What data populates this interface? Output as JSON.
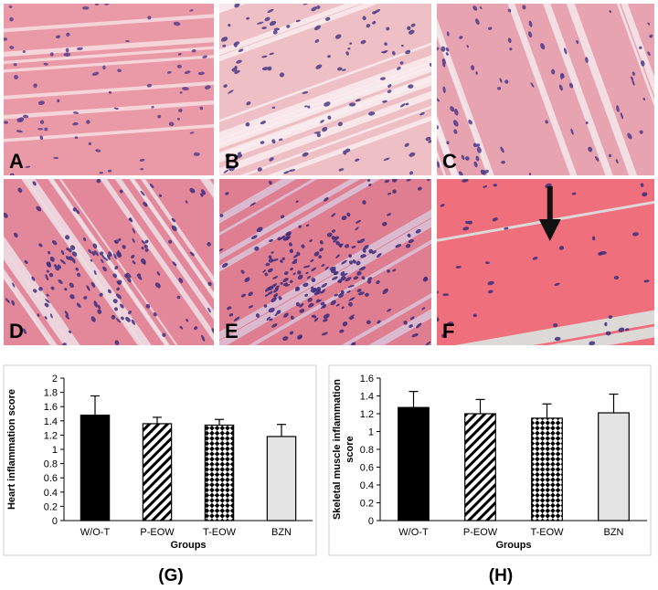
{
  "micrographs": [
    {
      "label": "A",
      "icon": "histology-micrograph-icon",
      "base": "#e99aa6",
      "streak": "#f7dfe3",
      "nuclei": "#5a3d8c"
    },
    {
      "label": "B",
      "icon": "histology-micrograph-icon",
      "base": "#eec0c6",
      "streak": "#f9ecee",
      "nuclei": "#4a3a86"
    },
    {
      "label": "C",
      "icon": "histology-micrograph-icon",
      "base": "#e7a4b0",
      "streak": "#f3e9ec",
      "nuclei": "#4c3a88"
    },
    {
      "label": "D",
      "icon": "histology-micrograph-icon",
      "base": "#e3889a",
      "streak": "#efe0e6",
      "nuclei": "#3f2f7e"
    },
    {
      "label": "E",
      "icon": "histology-micrograph-icon",
      "base": "#e07e91",
      "streak": "#d9c4da",
      "nuclei": "#3b2c7a"
    },
    {
      "label": "F",
      "icon": "histology-micrograph-icon",
      "base": "#ef6f7d",
      "streak": "#d8ece6",
      "nuclei": "#3d2f7d"
    }
  ],
  "chart_data": [
    {
      "type": "bar",
      "caption": "(G)",
      "categories": [
        "W/O-T",
        "P-EOW",
        "T-EOW",
        "BZN"
      ],
      "values": [
        1.48,
        1.36,
        1.34,
        1.18
      ],
      "errors": [
        0.27,
        0.09,
        0.08,
        0.17
      ],
      "patterns": [
        "solid-black",
        "diagonal-hatch",
        "checker",
        "light-gray"
      ],
      "xlabel": "Groups",
      "ylabel": "Heart inflammation score",
      "ylim": [
        0,
        2
      ],
      "yticks": [
        "0",
        "0.2",
        "0.4",
        "0.6",
        "0.8",
        "1",
        "1.2",
        "1.4",
        "1.6",
        "1.8",
        "2"
      ],
      "grid": false
    },
    {
      "type": "bar",
      "caption": "(H)",
      "categories": [
        "W/O-T",
        "P-EOW",
        "T-EOW",
        "BZN"
      ],
      "values": [
        1.27,
        1.2,
        1.15,
        1.21
      ],
      "errors": [
        0.18,
        0.16,
        0.16,
        0.21
      ],
      "patterns": [
        "solid-black",
        "diagonal-hatch",
        "checker",
        "light-gray"
      ],
      "xlabel": "Groups",
      "ylabel": "Skeletal muscle inflammation score",
      "ylim": [
        0,
        1.6
      ],
      "yticks": [
        "0",
        "0.2",
        "0.4",
        "0.6",
        "0.8",
        "1",
        "1.2",
        "1.4",
        "1.6"
      ],
      "grid": false
    }
  ]
}
